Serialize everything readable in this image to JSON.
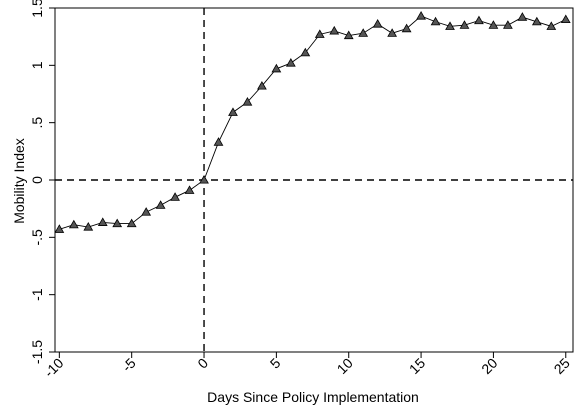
{
  "chart_data": {
    "type": "line",
    "title": "",
    "xlabel": "Days Since Policy Implementation",
    "ylabel": "Mobility Index",
    "xlim": [
      -10.3,
      25.5
    ],
    "ylim": [
      -1.5,
      1.5
    ],
    "xticks": [
      -10,
      -5,
      0,
      5,
      10,
      15,
      20,
      25
    ],
    "xtick_labels": [
      "-10",
      "-5",
      "0",
      "5",
      "10",
      "15",
      "20",
      "25"
    ],
    "yticks": [
      -1.5,
      -1,
      -0.5,
      0,
      0.5,
      1,
      1.5
    ],
    "ytick_labels": [
      "-1.5",
      "-1",
      "-.5",
      "0",
      ".5",
      "1",
      "1.5"
    ],
    "grid": false,
    "reference_lines": [
      {
        "axis": "x",
        "value": 0,
        "style": "dashed"
      },
      {
        "axis": "y",
        "value": 0,
        "style": "dashed"
      }
    ],
    "marker": "triangle",
    "series": [
      {
        "x": [
          -10,
          -9,
          -8,
          -7,
          -6,
          -5,
          -4,
          -3,
          -2,
          -1,
          0,
          1,
          2,
          3,
          4,
          5,
          6,
          7,
          8,
          9,
          10,
          11,
          12,
          13,
          14,
          15,
          16,
          17,
          18,
          19,
          20,
          21,
          22,
          23,
          24,
          25
        ],
        "y": [
          -0.43,
          -0.39,
          -0.41,
          -0.37,
          -0.38,
          -0.38,
          -0.28,
          -0.22,
          -0.15,
          -0.09,
          0.0,
          0.33,
          0.59,
          0.68,
          0.82,
          0.97,
          1.02,
          1.11,
          1.27,
          1.3,
          1.26,
          1.28,
          1.36,
          1.28,
          1.32,
          1.43,
          1.38,
          1.34,
          1.35,
          1.39,
          1.35,
          1.35,
          1.42,
          1.38,
          1.34,
          1.4
        ]
      }
    ]
  },
  "colors": {
    "line": "#000000",
    "marker_fill": "#555555",
    "axis": "#000000"
  }
}
